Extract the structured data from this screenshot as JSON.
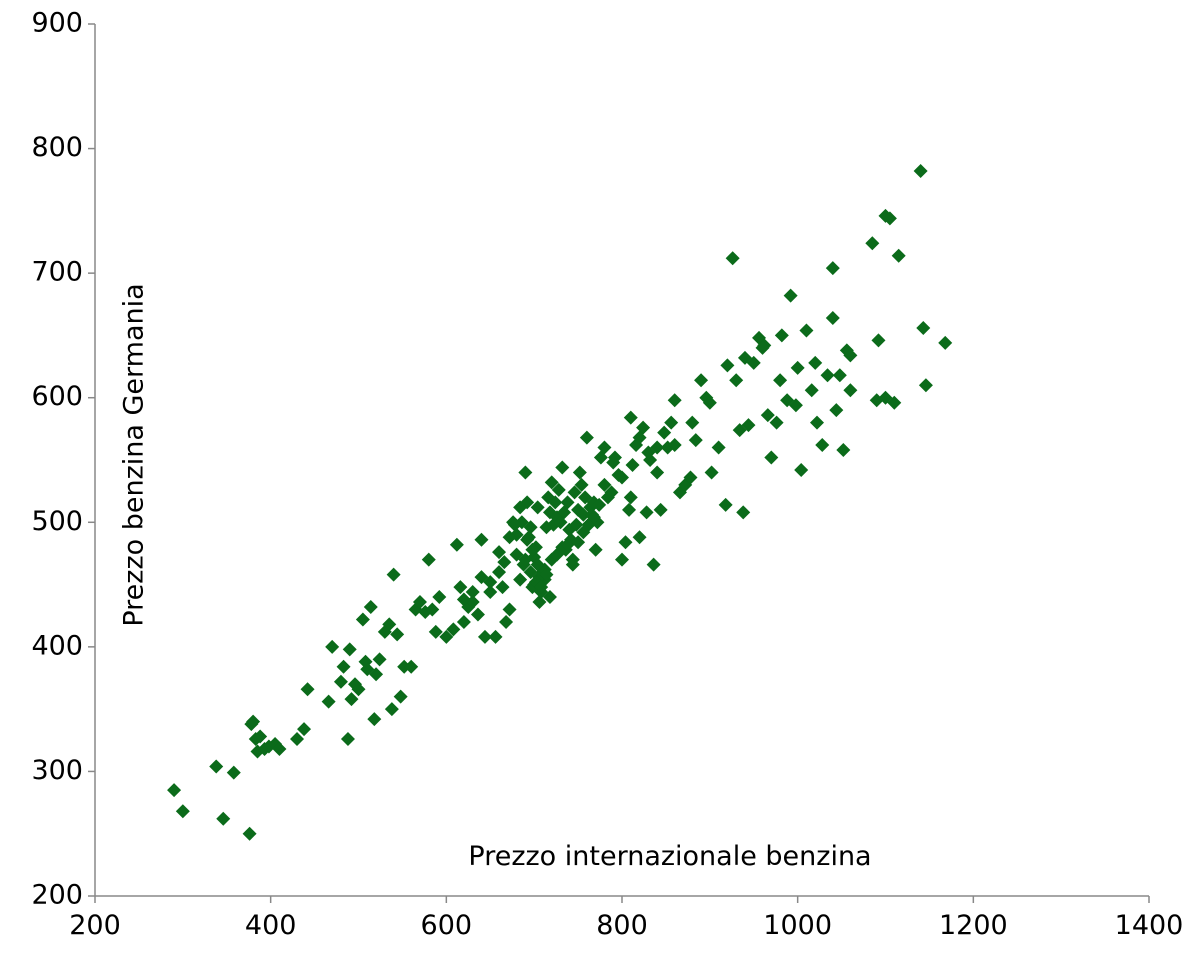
{
  "chart_data": {
    "type": "scatter",
    "title": "",
    "xlabel": "Prezzo internazionale benzina",
    "ylabel": "Prezzo benzina Germania",
    "xlim": [
      200,
      1400
    ],
    "ylim": [
      200,
      900
    ],
    "xticks": [
      200,
      400,
      600,
      800,
      1000,
      1200,
      1400
    ],
    "yticks": [
      200,
      300,
      400,
      500,
      600,
      700,
      800,
      900
    ],
    "grid": false,
    "legend": "none",
    "marker": "diamond",
    "color": "#0b6b1a",
    "series": [
      {
        "x": [
          290,
          300,
          338,
          346,
          358,
          378,
          380,
          383,
          385,
          388,
          393,
          398,
          405,
          410,
          430,
          438,
          442,
          466,
          470,
          480,
          483,
          488,
          490,
          492,
          496,
          500,
          505,
          508,
          510,
          514,
          518,
          520,
          524,
          530,
          535,
          538,
          540,
          544,
          548,
          552,
          560,
          565,
          570,
          576,
          580,
          584,
          588,
          592,
          600,
          608,
          612,
          616,
          620,
          625,
          630,
          636,
          640,
          644,
          650,
          656,
          660,
          664,
          668,
          672,
          676,
          680,
          684,
          688,
          690,
          692,
          694,
          696,
          698,
          700,
          702,
          704,
          706,
          708,
          710,
          712,
          714,
          716,
          718,
          720,
          722,
          724,
          726,
          728,
          730,
          732,
          734,
          736,
          738,
          740,
          742,
          744,
          746,
          748,
          750,
          752,
          754,
          756,
          758,
          760,
          762,
          764,
          766,
          768,
          770,
          772,
          776,
          780,
          784,
          788,
          792,
          796,
          800,
          804,
          808,
          812,
          816,
          820,
          824,
          828,
          832,
          836,
          840,
          844,
          848,
          852,
          856,
          860,
          866,
          872,
          878,
          884,
          890,
          896,
          902,
          910,
          918,
          926,
          930,
          934,
          938,
          944,
          950,
          956,
          962,
          966,
          970,
          976,
          982,
          988,
          992,
          998,
          1004,
          1010,
          1016,
          1022,
          1028,
          1034,
          1040,
          1044,
          1048,
          1052,
          1056,
          1060,
          1085,
          1092,
          1100,
          1105,
          1110,
          1115,
          1140,
          1143,
          1146,
          1168,
          700,
          706,
          712,
          718,
          690,
          696,
          702,
          708,
          714,
          720,
          726,
          732,
          738,
          680,
          686,
          692,
          698,
          704,
          744,
          750,
          756,
          762,
          768,
          774,
          660,
          666,
          672,
          678,
          684,
          620,
          630,
          640,
          650,
          860,
          880,
          900,
          920,
          940,
          960,
          980,
          1000,
          1020,
          1040,
          1060,
          840,
          830,
          820,
          810,
          780,
          790,
          800,
          810,
          376,
          1100,
          1090
        ],
        "y": [
          285,
          268,
          304,
          262,
          299,
          338,
          340,
          326,
          316,
          328,
          318,
          320,
          322,
          318,
          326,
          334,
          366,
          356,
          400,
          372,
          384,
          326,
          398,
          358,
          370,
          366,
          422,
          388,
          382,
          432,
          342,
          378,
          390,
          412,
          418,
          350,
          458,
          410,
          360,
          384,
          384,
          430,
          436,
          428,
          470,
          430,
          412,
          440,
          408,
          414,
          482,
          448,
          420,
          432,
          436,
          426,
          486,
          408,
          444,
          408,
          460,
          448,
          420,
          430,
          500,
          474,
          454,
          466,
          540,
          516,
          488,
          496,
          448,
          472,
          480,
          512,
          436,
          444,
          460,
          454,
          496,
          520,
          508,
          532,
          498,
          516,
          504,
          526,
          500,
          544,
          508,
          478,
          516,
          494,
          486,
          466,
          524,
          498,
          510,
          540,
          530,
          506,
          520,
          568,
          498,
          512,
          506,
          516,
          478,
          500,
          552,
          530,
          520,
          524,
          552,
          538,
          470,
          484,
          510,
          546,
          562,
          488,
          576,
          508,
          550,
          466,
          560,
          510,
          572,
          560,
          580,
          598,
          524,
          530,
          536,
          566,
          614,
          600,
          540,
          560,
          514,
          712,
          614,
          574,
          508,
          578,
          628,
          648,
          642,
          586,
          552,
          580,
          650,
          598,
          682,
          594,
          542,
          654,
          606,
          580,
          562,
          618,
          704,
          590,
          618,
          558,
          638,
          606,
          724,
          646,
          746,
          744,
          596,
          714,
          782,
          656,
          610,
          644,
          450,
          456,
          462,
          440,
          470,
          460,
          452,
          448,
          458,
          470,
          474,
          480,
          482,
          490,
          500,
          486,
          478,
          466,
          470,
          484,
          492,
          498,
          504,
          514,
          476,
          468,
          488,
          498,
          512,
          438,
          444,
          456,
          452,
          562,
          580,
          596,
          626,
          632,
          640,
          614,
          624,
          628,
          664,
          634,
          540,
          556,
          568,
          584,
          560,
          548,
          536,
          520,
          250,
          600,
          598
        ]
      }
    ]
  }
}
